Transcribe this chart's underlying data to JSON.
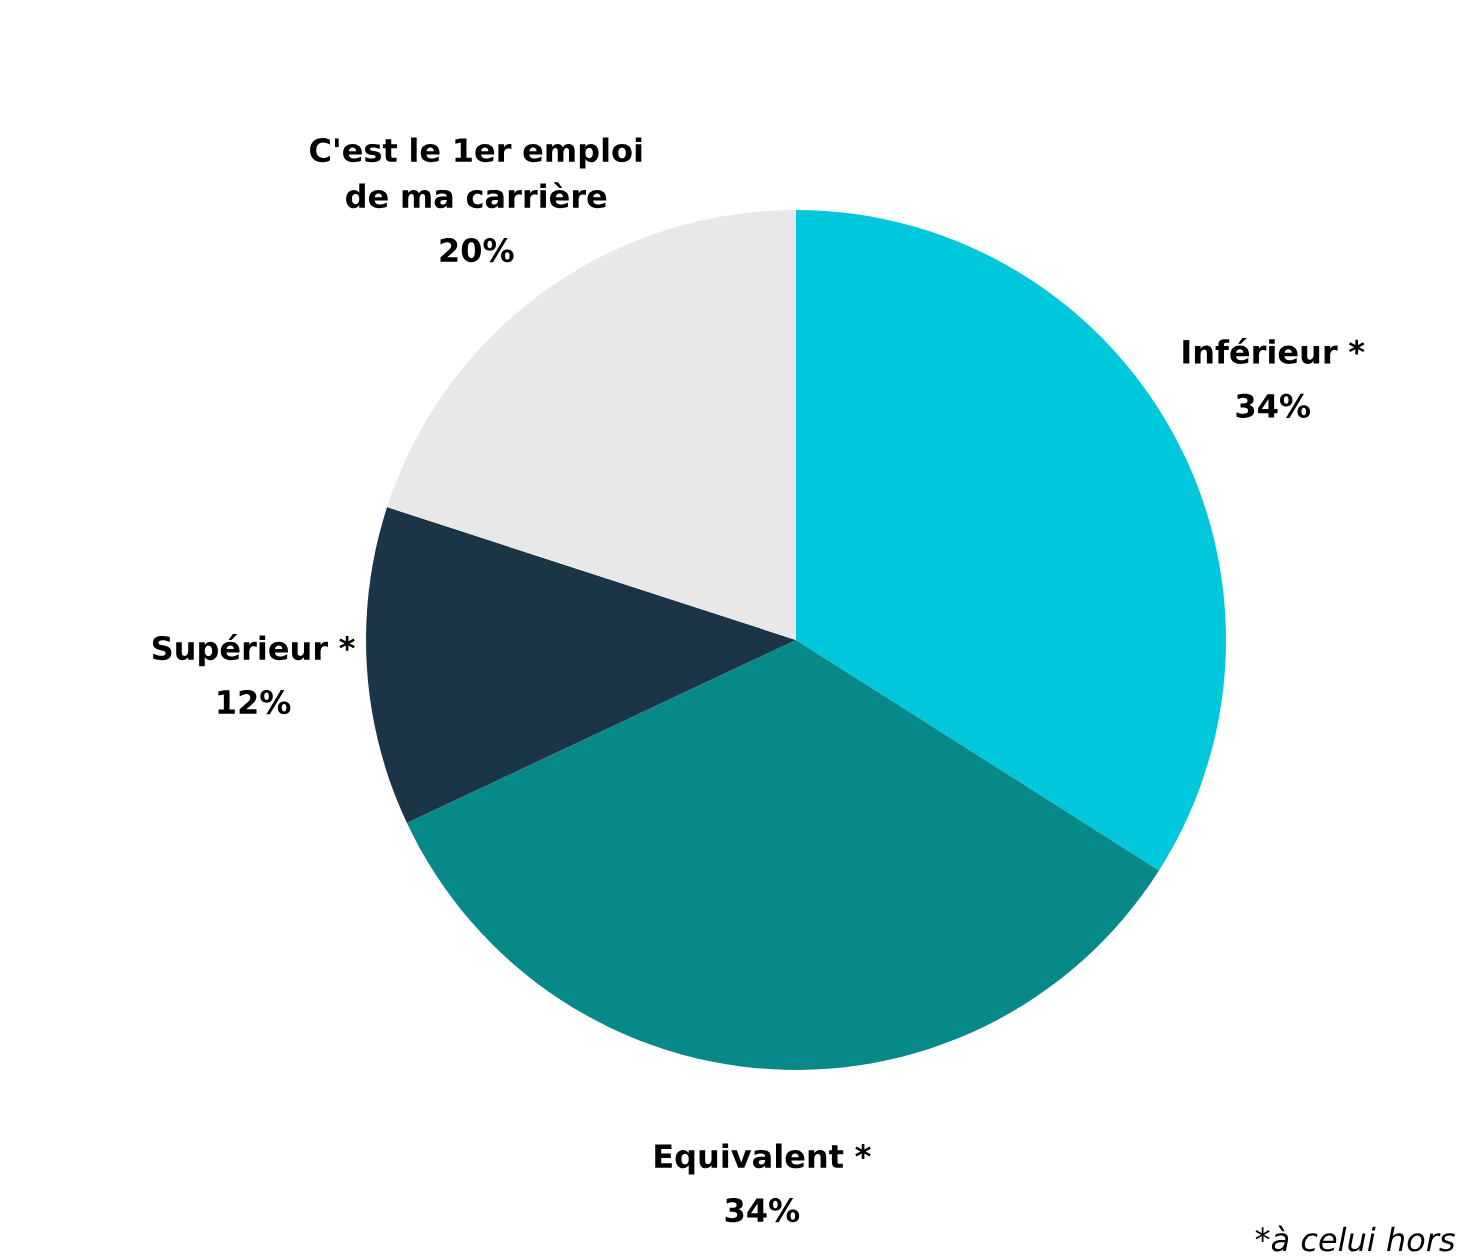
{
  "chart_data": {
    "type": "pie",
    "categories": [
      "Inférieur *",
      "Equivalent *",
      "Supérieur *",
      "C'est le 1er emploi de ma carrière"
    ],
    "values": [
      34,
      34,
      12,
      20
    ],
    "value_labels": [
      "34%",
      "34%",
      "12%",
      "20%"
    ],
    "colors": [
      "#00c8dc",
      "#07898a",
      "#193546",
      "#e8e8e8"
    ],
    "annotations": [
      "*à celui hors"
    ]
  }
}
